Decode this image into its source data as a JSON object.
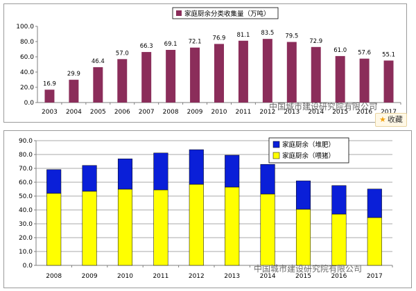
{
  "chart_data": [
    {
      "type": "bar",
      "categories": [
        "2003",
        "2004",
        "2005",
        "2006",
        "2007",
        "2008",
        "2009",
        "2010",
        "2011",
        "2012",
        "2013",
        "2014",
        "2015",
        "2016",
        "2017"
      ],
      "series": [
        {
          "name": "家庭厨余分类收集量（万吨）",
          "values": [
            16.9,
            29.9,
            46.4,
            57.0,
            66.3,
            69.1,
            72.1,
            76.9,
            81.1,
            83.5,
            79.5,
            72.9,
            61.0,
            57.6,
            55.1
          ]
        }
      ],
      "data_labels": [
        "16.9",
        "29.9",
        "46.4",
        "57.0",
        "66.3",
        "69.1",
        "72.1",
        "76.9",
        "81.1",
        "83.5",
        "79.5",
        "72.9",
        "61.0",
        "57.6",
        "55.1"
      ],
      "ylim": [
        0,
        100
      ],
      "yticks": [
        0,
        20,
        40,
        60,
        80,
        100
      ],
      "ytick_labels": [
        "0.0",
        "20.0",
        "40.0",
        "60.0",
        "80.0",
        "100.0"
      ],
      "bar_color": "#8b2d5a",
      "legend_position": "top-center",
      "title": "",
      "xlabel": "",
      "ylabel": ""
    },
    {
      "type": "bar",
      "stacked": true,
      "categories": [
        "2008",
        "2009",
        "2010",
        "2011",
        "2012",
        "2013",
        "2014",
        "2015",
        "2016",
        "2017"
      ],
      "series": [
        {
          "name": "家庭厨余（喂猪）",
          "color": "#ffff00",
          "values": [
            52.0,
            53.5,
            55.0,
            54.5,
            58.5,
            56.5,
            51.5,
            40.5,
            37.0,
            34.5
          ]
        },
        {
          "name": "家庭厨余（堆肥）",
          "color": "#0a1fd8",
          "values": [
            17.1,
            18.6,
            21.9,
            26.6,
            25.0,
            23.0,
            21.4,
            20.5,
            20.6,
            20.6
          ]
        }
      ],
      "ylim": [
        0,
        90
      ],
      "yticks": [
        0,
        10,
        20,
        30,
        40,
        50,
        60,
        70,
        80,
        90
      ],
      "ytick_labels": [
        "0.0",
        "10.0",
        "20.0",
        "30.0",
        "40.0",
        "50.0",
        "60.0",
        "70.0",
        "80.0",
        "90.0"
      ],
      "legend_position": "top-right",
      "grid": true,
      "title": "",
      "xlabel": "",
      "ylabel": ""
    }
  ],
  "watermarks": {
    "top": "中国城市建设研究院有限公司",
    "bottom": "中国城市建设研究院有限公司"
  },
  "favorite_button": {
    "label": "收藏"
  }
}
